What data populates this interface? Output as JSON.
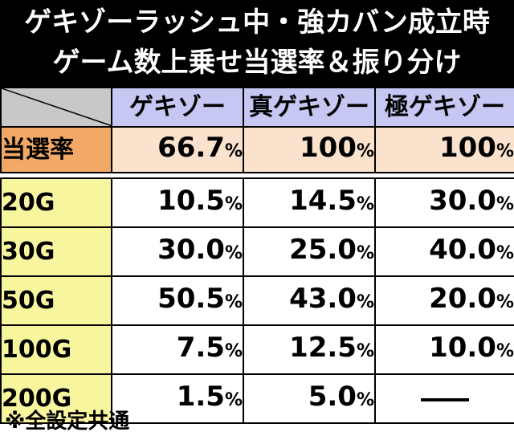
{
  "title": {
    "line1": "ゲキゾーラッシュ中・強カバン成立時",
    "line2": "ゲーム数上乗せ当選率＆振り分け"
  },
  "columns": [
    "ゲキゾー",
    "真ゲキゾー",
    "極ゲキゾー"
  ],
  "rate_row": {
    "label": "当選率",
    "values": [
      "66.7",
      "100",
      "100"
    ],
    "unit": "%"
  },
  "rows": [
    {
      "label": "20G",
      "values": [
        "10.5",
        "14.5",
        "30.0"
      ]
    },
    {
      "label": "30G",
      "values": [
        "30.0",
        "25.0",
        "40.0"
      ]
    },
    {
      "label": "50G",
      "values": [
        "50.5",
        "43.0",
        "20.0"
      ]
    },
    {
      "label": "100G",
      "values": [
        "7.5",
        "12.5",
        "10.0"
      ]
    },
    {
      "label": "200G",
      "values": [
        "1.5",
        "5.0",
        "―"
      ]
    }
  ],
  "unit": "%",
  "footnote": "※全設定共通",
  "colors": {
    "title_bg": "#000000",
    "header_bg": "#c7c7f3",
    "rate_label_bg": "#f2a866",
    "rate_bg": "#fbe2cc",
    "row_label_bg": "#f7f59d",
    "corner_bg": "#c8c8c8"
  }
}
